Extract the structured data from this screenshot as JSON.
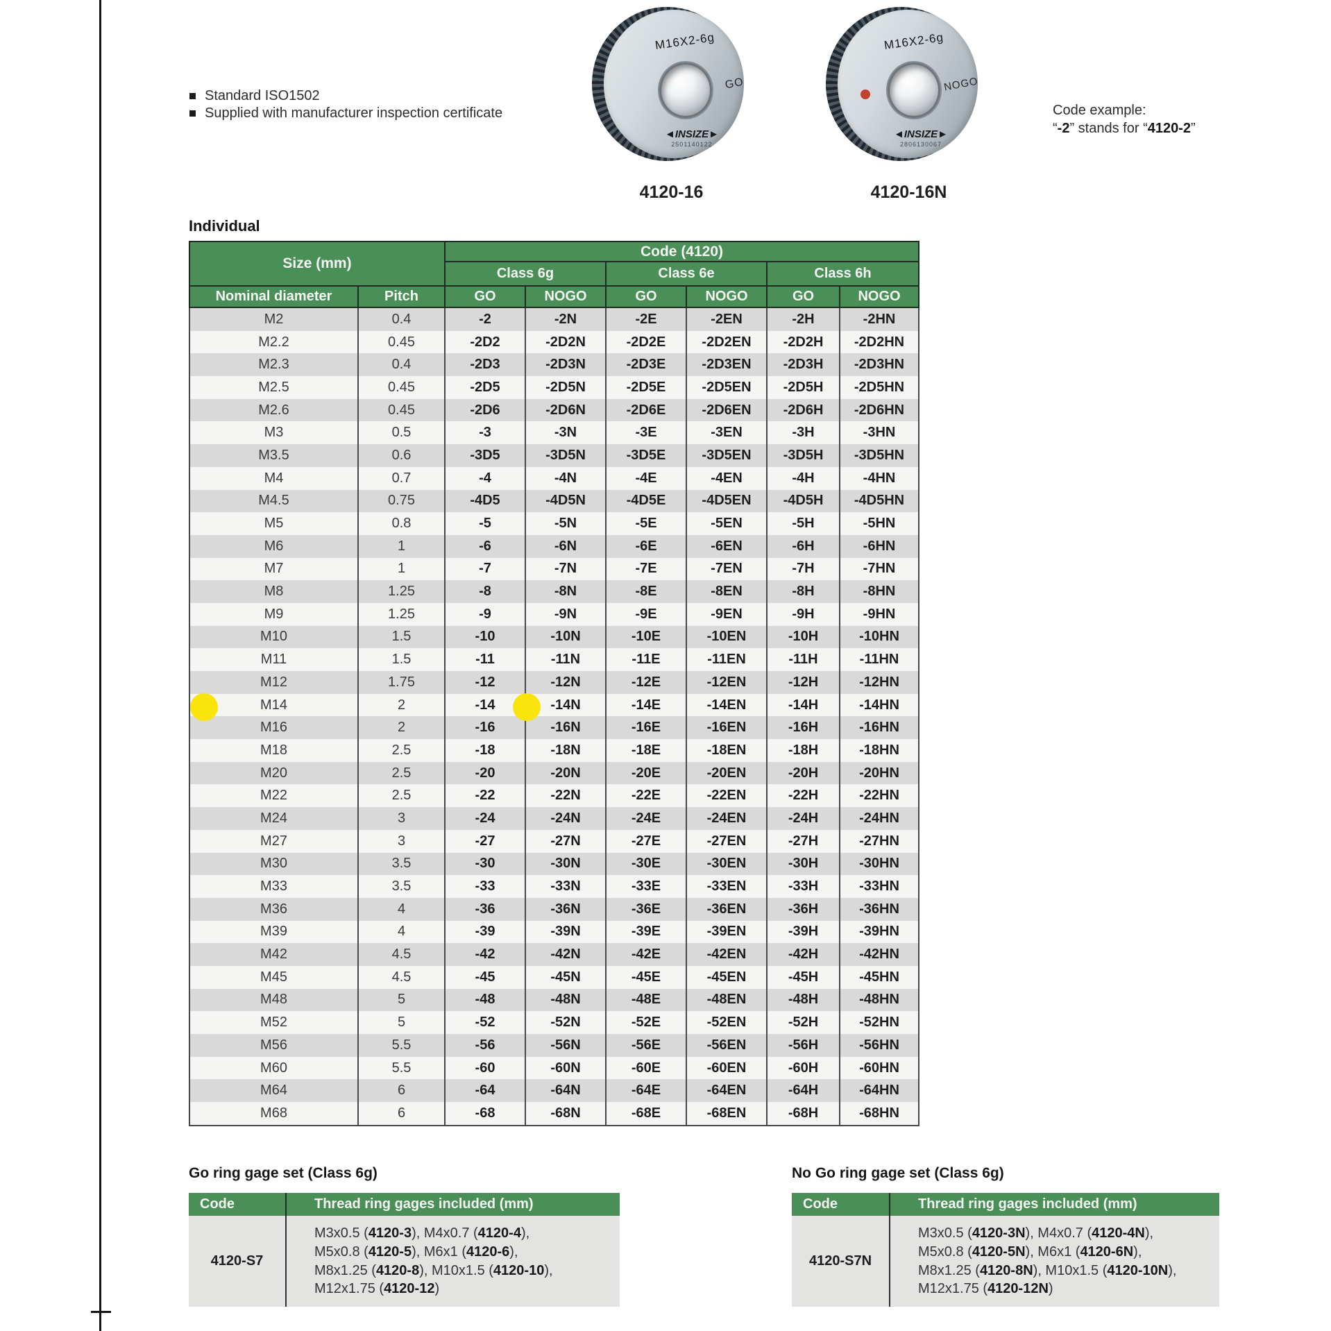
{
  "colors": {
    "header_green": "#4b8f58",
    "stripe_gray": "#d9d9d9",
    "highlight_yellow": "#fbe40b",
    "nogo_red_dot": "#c2402e"
  },
  "bullets": [
    "Standard ISO1502",
    "Supplied with manufacturer inspection certificate"
  ],
  "rings": [
    {
      "label": "M16X2-6g",
      "mark": "GO",
      "brand": "◄INSIZE►",
      "serial": "2501140122",
      "caption": "4120-16"
    },
    {
      "label": "M16X2-6g",
      "mark": "NOGO",
      "brand": "◄INSIZE►",
      "serial": "2806130067",
      "caption": "4120-16N"
    }
  ],
  "code_example": {
    "line1": "Code example:",
    "line2_segments": [
      {
        "t": "“"
      },
      {
        "t": "-2",
        "b": true
      },
      {
        "t": "” stands for “"
      },
      {
        "t": "4120-2",
        "b": true
      },
      {
        "t": "”"
      }
    ]
  },
  "individual_label": "Individual",
  "main_table": {
    "header": {
      "size": "Size (mm)",
      "code": "Code (4120)",
      "classes": [
        "Class 6g",
        "Class 6e",
        "Class 6h"
      ],
      "nominal": "Nominal diameter",
      "pitch": "Pitch",
      "go": "GO",
      "nogo": "NOGO"
    },
    "highlighted_row": "M14",
    "rows": [
      [
        "M2",
        "0.4",
        "-2",
        "-2N",
        "-2E",
        "-2EN",
        "-2H",
        "-2HN"
      ],
      [
        "M2.2",
        "0.45",
        "-2D2",
        "-2D2N",
        "-2D2E",
        "-2D2EN",
        "-2D2H",
        "-2D2HN"
      ],
      [
        "M2.3",
        "0.4",
        "-2D3",
        "-2D3N",
        "-2D3E",
        "-2D3EN",
        "-2D3H",
        "-2D3HN"
      ],
      [
        "M2.5",
        "0.45",
        "-2D5",
        "-2D5N",
        "-2D5E",
        "-2D5EN",
        "-2D5H",
        "-2D5HN"
      ],
      [
        "M2.6",
        "0.45",
        "-2D6",
        "-2D6N",
        "-2D6E",
        "-2D6EN",
        "-2D6H",
        "-2D6HN"
      ],
      [
        "M3",
        "0.5",
        "-3",
        "-3N",
        "-3E",
        "-3EN",
        "-3H",
        "-3HN"
      ],
      [
        "M3.5",
        "0.6",
        "-3D5",
        "-3D5N",
        "-3D5E",
        "-3D5EN",
        "-3D5H",
        "-3D5HN"
      ],
      [
        "M4",
        "0.7",
        "-4",
        "-4N",
        "-4E",
        "-4EN",
        "-4H",
        "-4HN"
      ],
      [
        "M4.5",
        "0.75",
        "-4D5",
        "-4D5N",
        "-4D5E",
        "-4D5EN",
        "-4D5H",
        "-4D5HN"
      ],
      [
        "M5",
        "0.8",
        "-5",
        "-5N",
        "-5E",
        "-5EN",
        "-5H",
        "-5HN"
      ],
      [
        "M6",
        "1",
        "-6",
        "-6N",
        "-6E",
        "-6EN",
        "-6H",
        "-6HN"
      ],
      [
        "M7",
        "1",
        "-7",
        "-7N",
        "-7E",
        "-7EN",
        "-7H",
        "-7HN"
      ],
      [
        "M8",
        "1.25",
        "-8",
        "-8N",
        "-8E",
        "-8EN",
        "-8H",
        "-8HN"
      ],
      [
        "M9",
        "1.25",
        "-9",
        "-9N",
        "-9E",
        "-9EN",
        "-9H",
        "-9HN"
      ],
      [
        "M10",
        "1.5",
        "-10",
        "-10N",
        "-10E",
        "-10EN",
        "-10H",
        "-10HN"
      ],
      [
        "M11",
        "1.5",
        "-11",
        "-11N",
        "-11E",
        "-11EN",
        "-11H",
        "-11HN"
      ],
      [
        "M12",
        "1.75",
        "-12",
        "-12N",
        "-12E",
        "-12EN",
        "-12H",
        "-12HN"
      ],
      [
        "M14",
        "2",
        "-14",
        "-14N",
        "-14E",
        "-14EN",
        "-14H",
        "-14HN"
      ],
      [
        "M16",
        "2",
        "-16",
        "-16N",
        "-16E",
        "-16EN",
        "-16H",
        "-16HN"
      ],
      [
        "M18",
        "2.5",
        "-18",
        "-18N",
        "-18E",
        "-18EN",
        "-18H",
        "-18HN"
      ],
      [
        "M20",
        "2.5",
        "-20",
        "-20N",
        "-20E",
        "-20EN",
        "-20H",
        "-20HN"
      ],
      [
        "M22",
        "2.5",
        "-22",
        "-22N",
        "-22E",
        "-22EN",
        "-22H",
        "-22HN"
      ],
      [
        "M24",
        "3",
        "-24",
        "-24N",
        "-24E",
        "-24EN",
        "-24H",
        "-24HN"
      ],
      [
        "M27",
        "3",
        "-27",
        "-27N",
        "-27E",
        "-27EN",
        "-27H",
        "-27HN"
      ],
      [
        "M30",
        "3.5",
        "-30",
        "-30N",
        "-30E",
        "-30EN",
        "-30H",
        "-30HN"
      ],
      [
        "M33",
        "3.5",
        "-33",
        "-33N",
        "-33E",
        "-33EN",
        "-33H",
        "-33HN"
      ],
      [
        "M36",
        "4",
        "-36",
        "-36N",
        "-36E",
        "-36EN",
        "-36H",
        "-36HN"
      ],
      [
        "M39",
        "4",
        "-39",
        "-39N",
        "-39E",
        "-39EN",
        "-39H",
        "-39HN"
      ],
      [
        "M42",
        "4.5",
        "-42",
        "-42N",
        "-42E",
        "-42EN",
        "-42H",
        "-42HN"
      ],
      [
        "M45",
        "4.5",
        "-45",
        "-45N",
        "-45E",
        "-45EN",
        "-45H",
        "-45HN"
      ],
      [
        "M48",
        "5",
        "-48",
        "-48N",
        "-48E",
        "-48EN",
        "-48H",
        "-48HN"
      ],
      [
        "M52",
        "5",
        "-52",
        "-52N",
        "-52E",
        "-52EN",
        "-52H",
        "-52HN"
      ],
      [
        "M56",
        "5.5",
        "-56",
        "-56N",
        "-56E",
        "-56EN",
        "-56H",
        "-56HN"
      ],
      [
        "M60",
        "5.5",
        "-60",
        "-60N",
        "-60E",
        "-60EN",
        "-60H",
        "-60HN"
      ],
      [
        "M64",
        "6",
        "-64",
        "-64N",
        "-64E",
        "-64EN",
        "-64H",
        "-64HN"
      ],
      [
        "M68",
        "6",
        "-68",
        "-68N",
        "-68E",
        "-68EN",
        "-68H",
        "-68HN"
      ]
    ]
  },
  "set_tables": [
    {
      "heading": "Go ring gage set (Class 6g)",
      "code_header": "Code",
      "gages_header": "Thread ring gages included (mm)",
      "code": "4120-S7",
      "lines": [
        [
          {
            "t": "M3x0.5 ("
          },
          {
            "t": "4120-3",
            "b": true
          },
          {
            "t": "), M4x0.7 ("
          },
          {
            "t": "4120-4",
            "b": true
          },
          {
            "t": "),"
          }
        ],
        [
          {
            "t": "M5x0.8 ("
          },
          {
            "t": "4120-5",
            "b": true
          },
          {
            "t": "), M6x1 ("
          },
          {
            "t": "4120-6",
            "b": true
          },
          {
            "t": "),"
          }
        ],
        [
          {
            "t": "M8x1.25 ("
          },
          {
            "t": "4120-8",
            "b": true
          },
          {
            "t": "), M10x1.5 ("
          },
          {
            "t": "4120-10",
            "b": true
          },
          {
            "t": "),"
          }
        ],
        [
          {
            "t": "M12x1.75 ("
          },
          {
            "t": "4120-12",
            "b": true
          },
          {
            "t": ")"
          }
        ]
      ]
    },
    {
      "heading": "No Go ring gage set (Class 6g)",
      "code_header": "Code",
      "gages_header": "Thread ring gages included (mm)",
      "code": "4120-S7N",
      "lines": [
        [
          {
            "t": "M3x0.5 ("
          },
          {
            "t": "4120-3N",
            "b": true
          },
          {
            "t": "), M4x0.7 ("
          },
          {
            "t": "4120-4N",
            "b": true
          },
          {
            "t": "),"
          }
        ],
        [
          {
            "t": "M5x0.8 ("
          },
          {
            "t": "4120-5N",
            "b": true
          },
          {
            "t": "), M6x1 ("
          },
          {
            "t": "4120-6N",
            "b": true
          },
          {
            "t": "),"
          }
        ],
        [
          {
            "t": "M8x1.25 ("
          },
          {
            "t": "4120-8N",
            "b": true
          },
          {
            "t": "), M10x1.5 ("
          },
          {
            "t": "4120-10N",
            "b": true
          },
          {
            "t": "),"
          }
        ],
        [
          {
            "t": "M12x1.75 ("
          },
          {
            "t": "4120-12N",
            "b": true
          },
          {
            "t": ")"
          }
        ]
      ]
    }
  ]
}
